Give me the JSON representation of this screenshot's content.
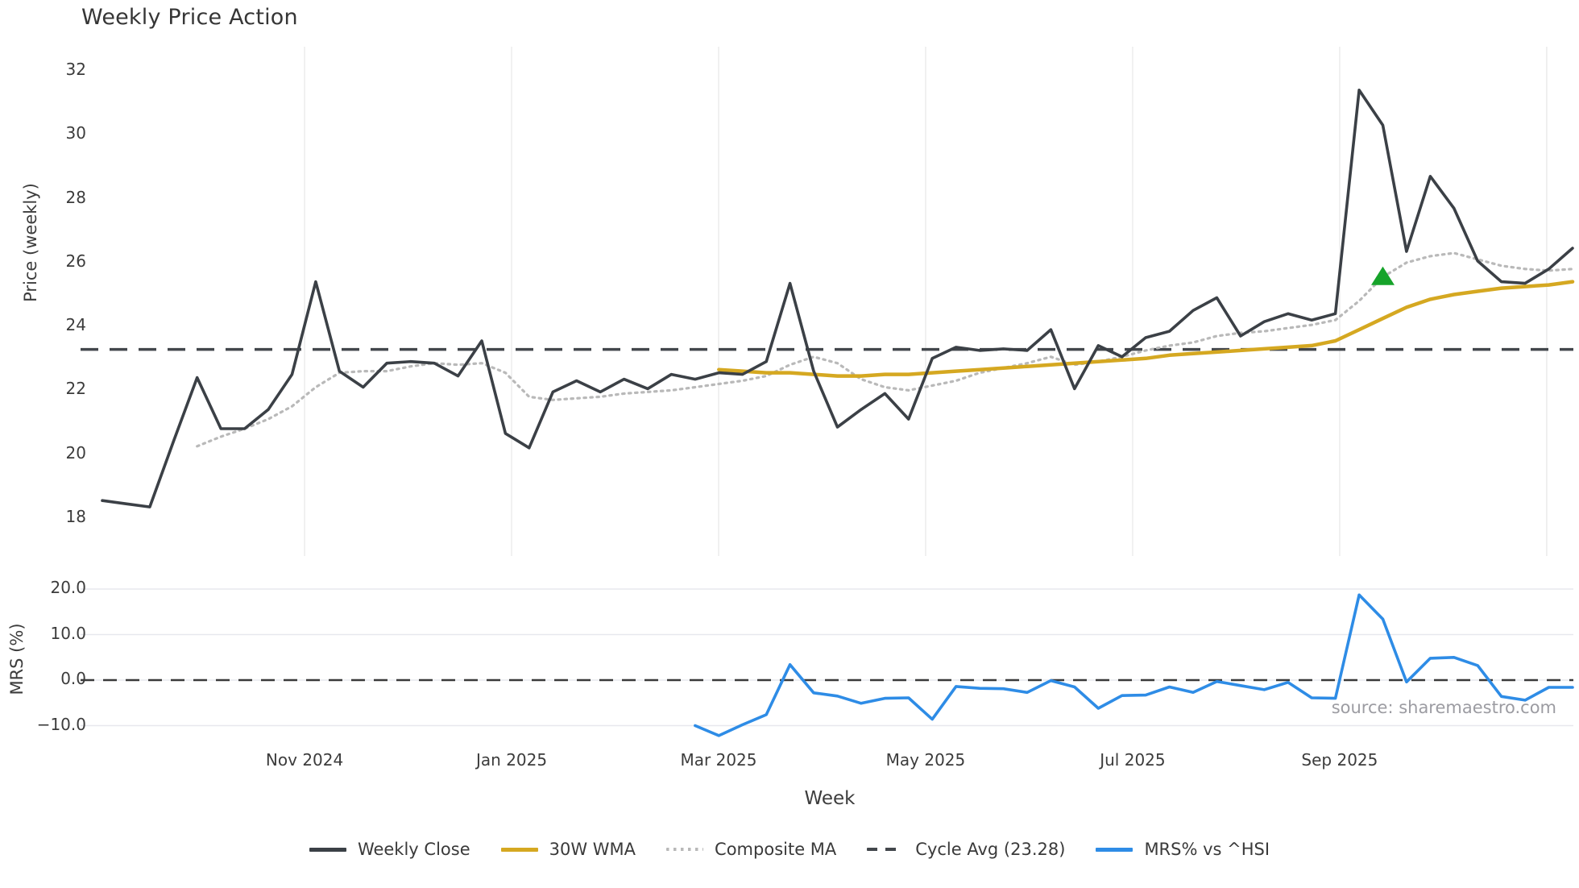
{
  "title": "Weekly Price Action",
  "source_note": "source: sharemaestro.com",
  "colors": {
    "weekly_close": "#3b4046",
    "wma_30w": "#d5a821",
    "composite_ma": "#b9b9b9",
    "cycle_avg": "#43474c",
    "mrs": "#2e8ce6",
    "signal_green": "#16a32a",
    "price_grid": "#ededed",
    "mrs_grid": "#e7e8ee",
    "tick_text": "#3c3c3c"
  },
  "chart_data": [
    {
      "type": "line",
      "panel": "price",
      "title": "Weekly Price Action",
      "ylabel": "Price (weekly)",
      "xlabel": "Week",
      "ylim": [
        16.8,
        32.8
      ],
      "grid": "vertical-only",
      "yticks": [
        {
          "label": "32",
          "value": 32
        },
        {
          "label": "30",
          "value": 30
        },
        {
          "label": "28",
          "value": 28
        },
        {
          "label": "26",
          "value": 26
        },
        {
          "label": "24",
          "value": 24
        },
        {
          "label": "22",
          "value": 22
        },
        {
          "label": "20",
          "value": 20
        },
        {
          "label": "18",
          "value": 18
        }
      ],
      "xticks": [
        {
          "label": "Nov 2024",
          "week": 8.53
        },
        {
          "label": "Jan 2025",
          "week": 17.26
        },
        {
          "label": "Mar 2025",
          "week": 25.99
        },
        {
          "label": "May 2025",
          "week": 34.72
        },
        {
          "label": "Jul 2025",
          "week": 43.45
        },
        {
          "label": "Sep 2025",
          "week": 52.18
        },
        {
          "label": "",
          "week": 60.91
        }
      ],
      "series": [
        {
          "name": "Weekly Close",
          "start_week": 0,
          "values": [
            18.55,
            18.45,
            18.35,
            20.4,
            22.4,
            20.8,
            20.8,
            21.4,
            22.5,
            25.4,
            22.6,
            22.1,
            22.85,
            22.9,
            22.85,
            22.45,
            23.55,
            20.65,
            20.2,
            21.95,
            22.3,
            21.95,
            22.35,
            22.05,
            22.5,
            22.35,
            22.55,
            22.5,
            22.9,
            25.35,
            22.6,
            20.85,
            21.4,
            21.9,
            21.1,
            23.0,
            23.35,
            23.25,
            23.3,
            23.25,
            23.9,
            22.05,
            23.4,
            23.05,
            23.65,
            23.85,
            24.5,
            24.9,
            23.7,
            24.15,
            24.4,
            24.2,
            24.4,
            31.4,
            30.3,
            26.35,
            28.7,
            27.7,
            26.05,
            25.4,
            25.35,
            25.8,
            26.45
          ]
        },
        {
          "name": "30W WMA",
          "start_week": 26,
          "values": [
            22.65,
            22.6,
            22.55,
            22.55,
            22.5,
            22.45,
            22.45,
            22.5,
            22.5,
            22.55,
            22.6,
            22.65,
            22.7,
            22.75,
            22.8,
            22.85,
            22.9,
            22.95,
            23.0,
            23.1,
            23.15,
            23.2,
            23.25,
            23.3,
            23.35,
            23.4,
            23.55,
            23.9,
            24.25,
            24.6,
            24.85,
            25.0,
            25.1,
            25.2,
            25.25,
            25.3,
            25.4
          ]
        },
        {
          "name": "Composite MA",
          "start_week": 4,
          "values": [
            20.25,
            20.55,
            20.8,
            21.1,
            21.5,
            22.1,
            22.55,
            22.6,
            22.6,
            22.75,
            22.85,
            22.8,
            22.85,
            22.55,
            21.8,
            21.7,
            21.75,
            21.8,
            21.9,
            21.95,
            22.0,
            22.1,
            22.2,
            22.3,
            22.45,
            22.8,
            23.05,
            22.85,
            22.35,
            22.1,
            22.0,
            22.15,
            22.3,
            22.55,
            22.7,
            22.85,
            23.05,
            22.8,
            22.9,
            23.05,
            23.25,
            23.4,
            23.5,
            23.7,
            23.8,
            23.85,
            23.95,
            24.05,
            24.2,
            24.8,
            25.55,
            26.0,
            26.2,
            26.3,
            26.1,
            25.9,
            25.8,
            25.75,
            25.8
          ]
        },
        {
          "name": "Cycle Avg",
          "type": "hline",
          "value": 23.28
        }
      ],
      "signal_marker": {
        "shape": "triangle-up",
        "week": 54,
        "price": 25.55
      }
    },
    {
      "type": "line",
      "panel": "mrs",
      "ylabel": "MRS (%)",
      "ylim": [
        -14,
        22
      ],
      "grid": "horizontal-only",
      "yticks": [
        {
          "label": "20.0",
          "value": 20
        },
        {
          "label": "10.0",
          "value": 10
        },
        {
          "label": "0.0",
          "value": 0
        },
        {
          "label": "−10.0",
          "value": -10
        }
      ],
      "zero_line": 0,
      "series": [
        {
          "name": "MRS% vs ^HSI",
          "start_week": 25,
          "values": [
            -10.0,
            -12.2,
            -9.8,
            -7.6,
            3.4,
            -2.8,
            -3.5,
            -5.1,
            -4.0,
            -3.9,
            -8.6,
            -1.4,
            -1.8,
            -1.9,
            -2.7,
            -0.1,
            -1.5,
            -6.2,
            -3.4,
            -3.3,
            -1.5,
            -2.7,
            -0.3,
            -1.2,
            -2.1,
            -0.5,
            -3.9,
            -4.0,
            18.7,
            13.4,
            -0.4,
            4.8,
            5.0,
            3.2,
            -3.6,
            -4.4,
            -1.6,
            -1.6
          ]
        }
      ]
    }
  ],
  "axis_labels": {
    "price_y": "Price (weekly)",
    "mrs_y": "MRS (%)",
    "x": "Week"
  },
  "legend": [
    {
      "label": "Weekly Close",
      "swatch": "solid",
      "color": "#3b4046"
    },
    {
      "label": "30W WMA",
      "swatch": "solid",
      "color": "#d5a821"
    },
    {
      "label": "Composite MA",
      "swatch": "dotted",
      "color": "#b9b9b9"
    },
    {
      "label": "Cycle Avg (23.28)",
      "swatch": "dashed",
      "color": "#43474c"
    },
    {
      "label": "MRS% vs ^HSI",
      "swatch": "solid",
      "color": "#2e8ce6"
    }
  ]
}
